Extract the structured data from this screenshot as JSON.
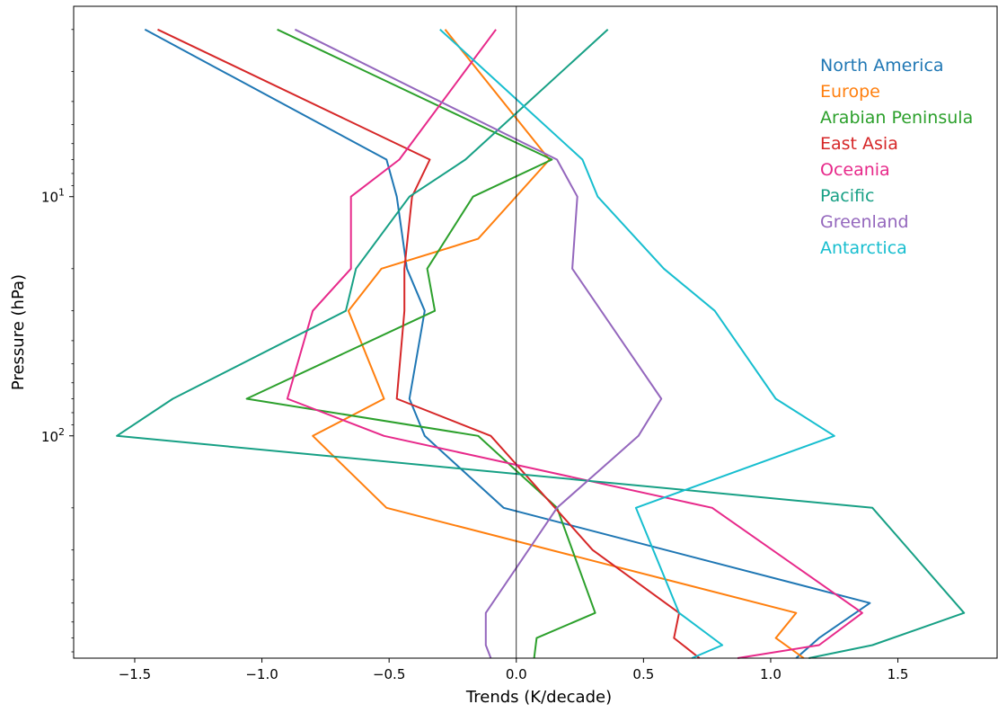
{
  "chart_data": {
    "type": "line",
    "xlabel": "Trends (K/decade)",
    "ylabel": "Pressure (hPa)",
    "xlim": [
      -1.74,
      1.89
    ],
    "ylim": [
      850,
      1.6
    ],
    "yscale": "log",
    "inverted_y": true,
    "xticks": [
      {
        "value": -1.5,
        "label": "−1.5"
      },
      {
        "value": -1.0,
        "label": "−1.0"
      },
      {
        "value": -0.5,
        "label": "−0.5"
      },
      {
        "value": 0.0,
        "label": "0.0"
      },
      {
        "value": 0.5,
        "label": "0.5"
      },
      {
        "value": 1.0,
        "label": "1.0"
      },
      {
        "value": 1.5,
        "label": "1.5"
      }
    ],
    "yticks": [
      {
        "value": 10,
        "base": "10",
        "exp": "1"
      },
      {
        "value": 100,
        "base": "10",
        "exp": "2"
      }
    ],
    "zero_line": true,
    "grid": false,
    "legend_position": "top-right",
    "series": [
      {
        "name": "North America",
        "color": "#1f77b4",
        "points": [
          [
            -1.46,
            2
          ],
          [
            -0.51,
            7
          ],
          [
            -0.47,
            10
          ],
          [
            -0.43,
            20
          ],
          [
            -0.36,
            30
          ],
          [
            -0.42,
            70
          ],
          [
            -0.36,
            100
          ],
          [
            -0.05,
            200
          ],
          [
            1.39,
            500
          ],
          [
            1.19,
            700
          ],
          [
            1.1,
            850
          ]
        ]
      },
      {
        "name": "Europe",
        "color": "#ff7f0e",
        "points": [
          [
            -0.28,
            2
          ],
          [
            0.13,
            7
          ],
          [
            -0.15,
            15
          ],
          [
            -0.53,
            20
          ],
          [
            -0.66,
            30
          ],
          [
            -0.52,
            70
          ],
          [
            -0.8,
            100
          ],
          [
            -0.51,
            200
          ],
          [
            1.1,
            550
          ],
          [
            1.02,
            700
          ],
          [
            1.13,
            850
          ]
        ]
      },
      {
        "name": "Arabian Peninsula",
        "color": "#2ca02c",
        "points": [
          [
            -0.94,
            2
          ],
          [
            0.14,
            7
          ],
          [
            -0.17,
            10
          ],
          [
            -0.35,
            20
          ],
          [
            -0.32,
            30
          ],
          [
            -1.06,
            70
          ],
          [
            -0.15,
            100
          ],
          [
            0.16,
            200
          ],
          [
            0.31,
            550
          ],
          [
            0.08,
            700
          ],
          [
            0.07,
            850
          ]
        ]
      },
      {
        "name": "East Asia",
        "color": "#d62728",
        "points": [
          [
            -1.41,
            2
          ],
          [
            -0.34,
            7
          ],
          [
            -0.41,
            10
          ],
          [
            -0.44,
            20
          ],
          [
            -0.44,
            30
          ],
          [
            -0.47,
            70
          ],
          [
            -0.1,
            100
          ],
          [
            0.3,
            300
          ],
          [
            0.64,
            550
          ],
          [
            0.62,
            700
          ],
          [
            0.72,
            850
          ]
        ]
      },
      {
        "name": "Oceania",
        "color": "#e7298a",
        "points": [
          [
            -0.08,
            2
          ],
          [
            -0.46,
            7
          ],
          [
            -0.65,
            10
          ],
          [
            -0.65,
            20
          ],
          [
            -0.8,
            30
          ],
          [
            -0.9,
            70
          ],
          [
            -0.52,
            100
          ],
          [
            0.77,
            200
          ],
          [
            1.36,
            550
          ],
          [
            1.19,
            750
          ],
          [
            0.87,
            850
          ]
        ]
      },
      {
        "name": "Pacific",
        "color": "#17a085",
        "points": [
          [
            0.36,
            2
          ],
          [
            -0.2,
            7
          ],
          [
            -0.42,
            10
          ],
          [
            -0.63,
            20
          ],
          [
            -0.67,
            30
          ],
          [
            -1.35,
            70
          ],
          [
            -1.57,
            100
          ],
          [
            1.4,
            200
          ],
          [
            1.76,
            550
          ],
          [
            1.4,
            750
          ],
          [
            1.15,
            850
          ]
        ]
      },
      {
        "name": "Greenland",
        "color": "#9467bd",
        "points": [
          [
            -0.87,
            2
          ],
          [
            0.16,
            7
          ],
          [
            0.24,
            10
          ],
          [
            0.22,
            20
          ],
          [
            0.57,
            70
          ],
          [
            0.48,
            100
          ],
          [
            0.16,
            200
          ],
          [
            -0.12,
            550
          ],
          [
            -0.12,
            750
          ],
          [
            -0.1,
            850
          ]
        ]
      },
      {
        "name": "Antarctica",
        "color": "#17becf",
        "points": [
          [
            -0.3,
            2
          ],
          [
            0.26,
            7
          ],
          [
            0.32,
            10
          ],
          [
            0.58,
            20
          ],
          [
            0.78,
            30
          ],
          [
            1.02,
            70
          ],
          [
            1.25,
            100
          ],
          [
            0.47,
            200
          ],
          [
            0.64,
            550
          ],
          [
            0.81,
            750
          ],
          [
            0.69,
            850
          ]
        ]
      }
    ]
  }
}
